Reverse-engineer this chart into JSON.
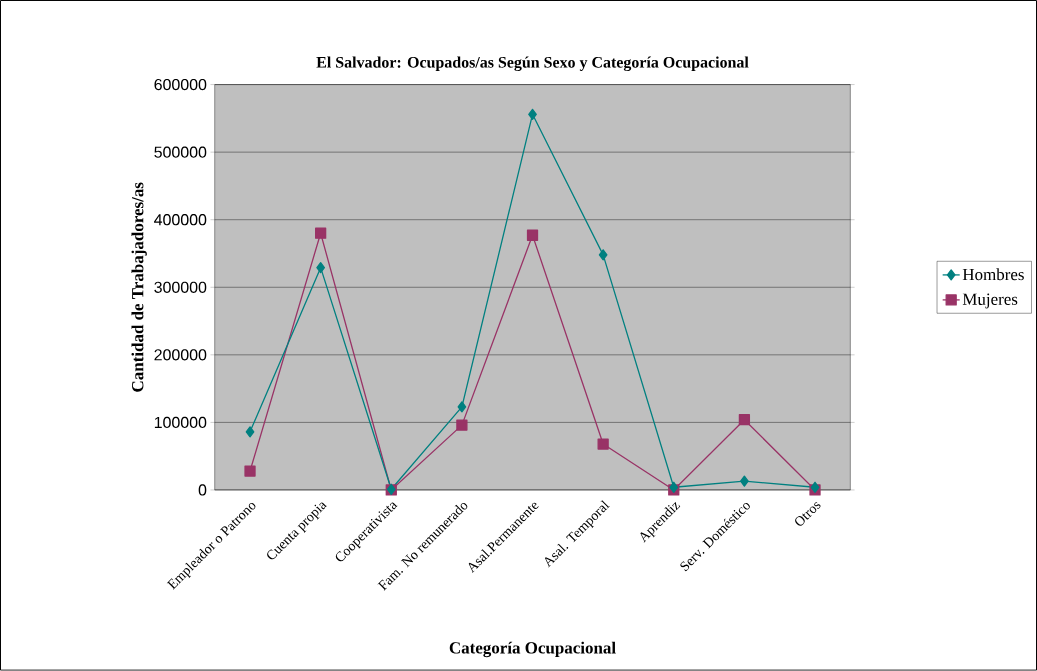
{
  "chart_data": {
    "type": "line",
    "title": "El Salvador: Ocupados/as Según Sexo y Categoría Ocupacional",
    "xlabel": "Categoría Ocupacional",
    "ylabel": "Cantidad de Trabajadores/as",
    "categories": [
      "Empleador o Patrono",
      "Cuenta propia",
      "Cooperativista",
      "Fam. No remunerado",
      "Asal.Permanente",
      "Asal. Temporal",
      "Aprendiz",
      "Serv. Doméstico",
      "Otros"
    ],
    "series": [
      {
        "name": "Hombres",
        "color": "#008080",
        "marker": "diamond",
        "values": [
          86000,
          329000,
          1000,
          123000,
          556000,
          348000,
          4000,
          13000,
          4000
        ]
      },
      {
        "name": "Mujeres",
        "color": "#993366",
        "marker": "square",
        "values": [
          28000,
          380000,
          0,
          96000,
          377000,
          68000,
          0,
          104000,
          0
        ]
      }
    ],
    "ylim": [
      0,
      600000
    ],
    "yticks": [
      0,
      100000,
      200000,
      300000,
      400000,
      500000,
      600000
    ],
    "grid": "y",
    "legend": "right",
    "line_style": "solid"
  }
}
